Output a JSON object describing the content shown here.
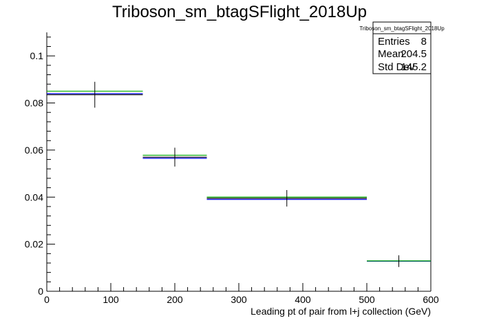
{
  "chart_data": {
    "type": "histogram",
    "title": "Triboson_sm_btagSFlight_2018Up",
    "xlabel": "Leading pt of pair from l+j collection (GeV)",
    "ylabel": "",
    "xlim": [
      0,
      600
    ],
    "ylim": [
      0,
      0.11
    ],
    "x_ticks": [
      "0",
      "100",
      "200",
      "300",
      "400",
      "500",
      "600"
    ],
    "y_ticks": [
      "0",
      "0.02",
      "0.04",
      "0.06",
      "0.08",
      "0.1"
    ],
    "grid": false,
    "bins": [
      {
        "xlow": 0,
        "xhigh": 150,
        "center": 75
      },
      {
        "xlow": 150,
        "xhigh": 250,
        "center": 200
      },
      {
        "xlow": 250,
        "xhigh": 500,
        "center": 375
      },
      {
        "xlow": 500,
        "xhigh": 600,
        "center": 550
      }
    ],
    "series": [
      {
        "color": "#000000",
        "values": [
          0.0835,
          0.057,
          0.0395,
          0.0128
        ],
        "errors": [
          0.0055,
          0.004,
          0.0035,
          0.0025
        ]
      },
      {
        "color": "#0000ff",
        "values": [
          0.084,
          0.0565,
          0.039,
          0.0128
        ]
      },
      {
        "color": "#00aa00",
        "values": [
          0.085,
          0.0578,
          0.04,
          0.0129
        ]
      }
    ],
    "stats": {
      "title": "Triboson_sm_btagSFlight_2018Up",
      "entries_label": "Entries",
      "entries": "8",
      "mean_label": "Mean",
      "mean": "204.5",
      "std_label": "Std Dev",
      "std": "145.2"
    }
  }
}
